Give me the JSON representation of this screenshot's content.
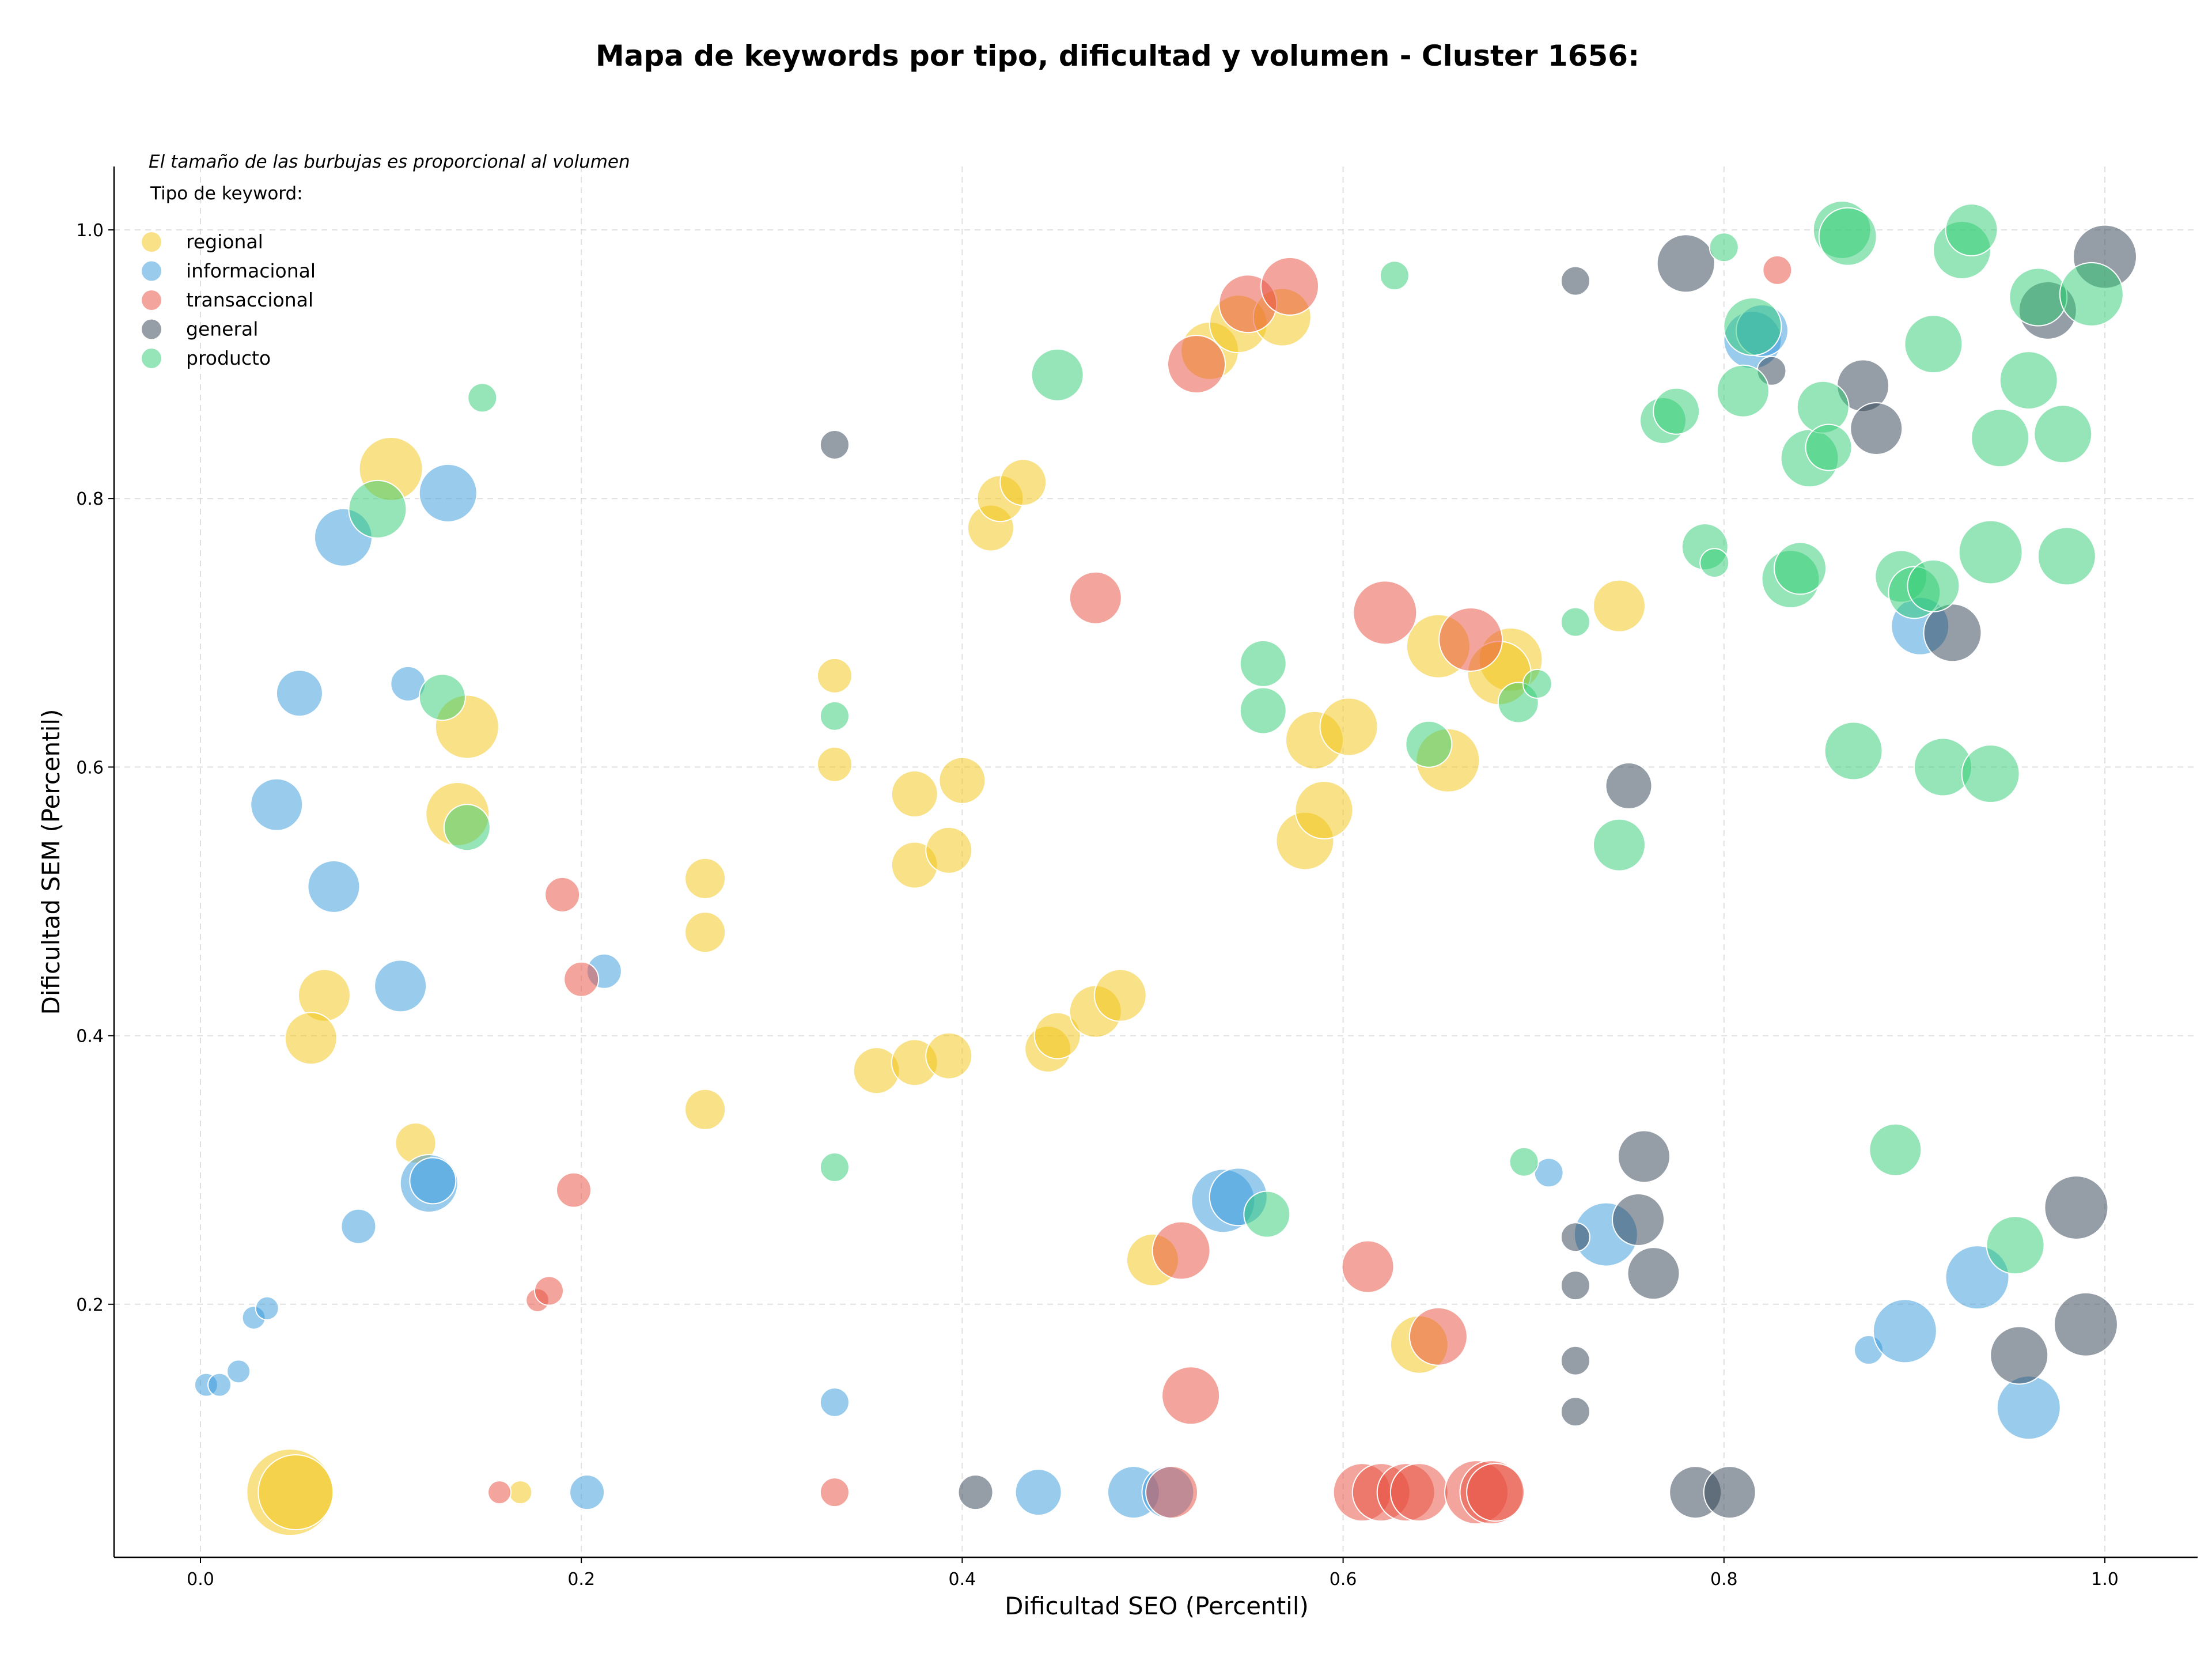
{
  "chart_data": {
    "type": "scatter",
    "title": "Mapa de keywords por tipo, dificultad y volumen - Cluster 1656:",
    "xlabel": "Dificultad SEO (Percentil)",
    "ylabel": "Dificultad SEM (Percentil)",
    "xlim": [
      -0.045,
      1.05
    ],
    "ylim": [
      0.0,
      1.045
    ],
    "xticks": [
      0.0,
      0.2,
      0.4,
      0.6,
      0.8,
      1.0
    ],
    "xtick_labels": [
      "0.0",
      "0.2",
      "0.4",
      "0.6",
      "0.8",
      "1.0"
    ],
    "yticks": [
      0.2,
      0.4,
      0.6,
      0.8,
      1.0
    ],
    "ytick_labels": [
      "0.2",
      "0.4",
      "0.6",
      "0.8",
      "1.0"
    ],
    "grid": true,
    "note": "El tamaño de las burbujas es proporcional al volumen",
    "legend_title": "Tipo de keyword:",
    "legend_position": "top-left",
    "series": [
      {
        "name": "regional",
        "color": "#F1C40F",
        "points": [
          [
            0.047,
            0.06,
            15
          ],
          [
            0.05,
            0.06,
            13
          ],
          [
            0.168,
            0.06,
            4
          ],
          [
            0.1,
            0.822,
            11
          ],
          [
            0.14,
            0.63,
            11
          ],
          [
            0.135,
            0.565,
            11
          ],
          [
            0.065,
            0.43,
            9
          ],
          [
            0.058,
            0.398,
            9
          ],
          [
            0.113,
            0.32,
            7
          ],
          [
            0.265,
            0.517,
            7
          ],
          [
            0.265,
            0.477,
            7
          ],
          [
            0.265,
            0.345,
            7
          ],
          [
            0.333,
            0.668,
            6
          ],
          [
            0.333,
            0.602,
            6
          ],
          [
            0.375,
            0.58,
            8
          ],
          [
            0.375,
            0.527,
            8
          ],
          [
            0.4,
            0.59,
            8
          ],
          [
            0.393,
            0.538,
            8
          ],
          [
            0.355,
            0.374,
            8
          ],
          [
            0.375,
            0.38,
            8
          ],
          [
            0.393,
            0.385,
            8
          ],
          [
            0.415,
            0.778,
            8
          ],
          [
            0.42,
            0.8,
            8
          ],
          [
            0.432,
            0.812,
            8
          ],
          [
            0.445,
            0.39,
            8
          ],
          [
            0.45,
            0.4,
            8
          ],
          [
            0.47,
            0.418,
            9
          ],
          [
            0.483,
            0.43,
            9
          ],
          [
            0.5,
            0.233,
            9
          ],
          [
            0.53,
            0.91,
            10
          ],
          [
            0.545,
            0.93,
            10
          ],
          [
            0.568,
            0.935,
            10
          ],
          [
            0.58,
            0.545,
            10
          ],
          [
            0.59,
            0.568,
            10
          ],
          [
            0.585,
            0.62,
            10
          ],
          [
            0.603,
            0.63,
            10
          ],
          [
            0.655,
            0.605,
            11
          ],
          [
            0.65,
            0.69,
            11
          ],
          [
            0.688,
            0.68,
            11
          ],
          [
            0.682,
            0.67,
            11
          ],
          [
            0.745,
            0.72,
            9
          ],
          [
            0.64,
            0.17,
            10
          ]
        ]
      },
      {
        "name": "informacional",
        "color": "#3498DB",
        "points": [
          [
            0.003,
            0.14,
            4
          ],
          [
            0.01,
            0.14,
            4
          ],
          [
            0.02,
            0.15,
            4
          ],
          [
            0.028,
            0.19,
            4
          ],
          [
            0.035,
            0.197,
            4
          ],
          [
            0.04,
            0.572,
            9
          ],
          [
            0.052,
            0.655,
            8
          ],
          [
            0.07,
            0.511,
            9
          ],
          [
            0.075,
            0.771,
            10
          ],
          [
            0.083,
            0.258,
            6
          ],
          [
            0.105,
            0.437,
            9
          ],
          [
            0.109,
            0.662,
            6
          ],
          [
            0.12,
            0.29,
            10
          ],
          [
            0.122,
            0.292,
            8
          ],
          [
            0.13,
            0.804,
            10
          ],
          [
            0.203,
            0.06,
            6
          ],
          [
            0.212,
            0.448,
            6
          ],
          [
            0.333,
            0.127,
            5
          ],
          [
            0.44,
            0.06,
            8
          ],
          [
            0.49,
            0.06,
            9
          ],
          [
            0.508,
            0.06,
            9
          ],
          [
            0.537,
            0.277,
            11
          ],
          [
            0.545,
            0.28,
            10
          ],
          [
            0.708,
            0.298,
            5
          ],
          [
            0.738,
            0.252,
            11
          ],
          [
            0.815,
            0.918,
            10
          ],
          [
            0.82,
            0.925,
            9
          ],
          [
            0.876,
            0.166,
            5
          ],
          [
            0.895,
            0.18,
            11
          ],
          [
            0.903,
            0.705,
            10
          ],
          [
            0.933,
            0.22,
            11
          ],
          [
            0.96,
            0.123,
            11
          ]
        ]
      },
      {
        "name": "transaccional",
        "color": "#E74C3C",
        "points": [
          [
            0.157,
            0.06,
            4
          ],
          [
            0.177,
            0.203,
            4
          ],
          [
            0.183,
            0.21,
            5
          ],
          [
            0.19,
            0.505,
            6
          ],
          [
            0.196,
            0.285,
            6
          ],
          [
            0.2,
            0.442,
            6
          ],
          [
            0.333,
            0.06,
            5
          ],
          [
            0.47,
            0.726,
            9
          ],
          [
            0.51,
            0.06,
            9
          ],
          [
            0.515,
            0.24,
            10
          ],
          [
            0.52,
            0.132,
            10
          ],
          [
            0.523,
            0.9,
            10
          ],
          [
            0.55,
            0.945,
            10
          ],
          [
            0.572,
            0.958,
            10
          ],
          [
            0.61,
            0.06,
            10
          ],
          [
            0.613,
            0.228,
            9
          ],
          [
            0.62,
            0.06,
            10
          ],
          [
            0.622,
            0.715,
            11
          ],
          [
            0.633,
            0.06,
            10
          ],
          [
            0.64,
            0.06,
            10
          ],
          [
            0.65,
            0.176,
            10
          ],
          [
            0.667,
            0.695,
            11
          ],
          [
            0.67,
            0.06,
            11
          ],
          [
            0.678,
            0.06,
            11
          ],
          [
            0.68,
            0.06,
            10
          ],
          [
            0.828,
            0.97,
            5
          ]
        ]
      },
      {
        "name": "general",
        "color": "#2C3E50",
        "points": [
          [
            0.333,
            0.84,
            5
          ],
          [
            0.407,
            0.06,
            6
          ],
          [
            0.722,
            0.962,
            5
          ],
          [
            0.722,
            0.25,
            5
          ],
          [
            0.722,
            0.214,
            5
          ],
          [
            0.722,
            0.158,
            5
          ],
          [
            0.722,
            0.12,
            5
          ],
          [
            0.75,
            0.586,
            8
          ],
          [
            0.755,
            0.263,
            9
          ],
          [
            0.758,
            0.31,
            9
          ],
          [
            0.763,
            0.223,
            9
          ],
          [
            0.78,
            0.975,
            10
          ],
          [
            0.785,
            0.06,
            9
          ],
          [
            0.803,
            0.06,
            9
          ],
          [
            0.825,
            0.895,
            5
          ],
          [
            0.873,
            0.884,
            9
          ],
          [
            0.88,
            0.852,
            9
          ],
          [
            0.92,
            0.7,
            10
          ],
          [
            0.955,
            0.162,
            10
          ],
          [
            0.97,
            0.94,
            10
          ],
          [
            0.985,
            0.272,
            11
          ],
          [
            0.99,
            0.185,
            11
          ],
          [
            1.0,
            0.98,
            11
          ]
        ]
      },
      {
        "name": "producto",
        "color": "#2ECC71",
        "points": [
          [
            0.093,
            0.792,
            10
          ],
          [
            0.127,
            0.652,
            8
          ],
          [
            0.14,
            0.555,
            8
          ],
          [
            0.148,
            0.875,
            5
          ],
          [
            0.333,
            0.638,
            5
          ],
          [
            0.333,
            0.302,
            5
          ],
          [
            0.45,
            0.892,
            9
          ],
          [
            0.558,
            0.677,
            8
          ],
          [
            0.558,
            0.642,
            8
          ],
          [
            0.56,
            0.267,
            8
          ],
          [
            0.627,
            0.966,
            5
          ],
          [
            0.645,
            0.617,
            8
          ],
          [
            0.692,
            0.648,
            7
          ],
          [
            0.695,
            0.306,
            5
          ],
          [
            0.702,
            0.662,
            5
          ],
          [
            0.722,
            0.708,
            5
          ],
          [
            0.745,
            0.542,
            9
          ],
          [
            0.768,
            0.858,
            8
          ],
          [
            0.775,
            0.865,
            8
          ],
          [
            0.79,
            0.764,
            8
          ],
          [
            0.795,
            0.752,
            5
          ],
          [
            0.8,
            0.987,
            5
          ],
          [
            0.81,
            0.88,
            9
          ],
          [
            0.815,
            0.928,
            10
          ],
          [
            0.835,
            0.74,
            10
          ],
          [
            0.84,
            0.748,
            9
          ],
          [
            0.845,
            0.83,
            10
          ],
          [
            0.852,
            0.868,
            9
          ],
          [
            0.855,
            0.838,
            8
          ],
          [
            0.862,
            1.0,
            10
          ],
          [
            0.865,
            0.995,
            10
          ],
          [
            0.868,
            0.612,
            10
          ],
          [
            0.89,
            0.315,
            9
          ],
          [
            0.893,
            0.742,
            9
          ],
          [
            0.9,
            0.73,
            9
          ],
          [
            0.91,
            0.735,
            9
          ],
          [
            0.91,
            0.915,
            10
          ],
          [
            0.915,
            0.6,
            10
          ],
          [
            0.925,
            0.985,
            10
          ],
          [
            0.93,
            1.0,
            9
          ],
          [
            0.94,
            0.595,
            10
          ],
          [
            0.94,
            0.76,
            11
          ],
          [
            0.945,
            0.845,
            10
          ],
          [
            0.953,
            0.244,
            10
          ],
          [
            0.96,
            0.888,
            10
          ],
          [
            0.965,
            0.95,
            10
          ],
          [
            0.978,
            0.848,
            10
          ],
          [
            0.98,
            0.757,
            10
          ],
          [
            0.993,
            0.952,
            11
          ]
        ]
      }
    ]
  }
}
